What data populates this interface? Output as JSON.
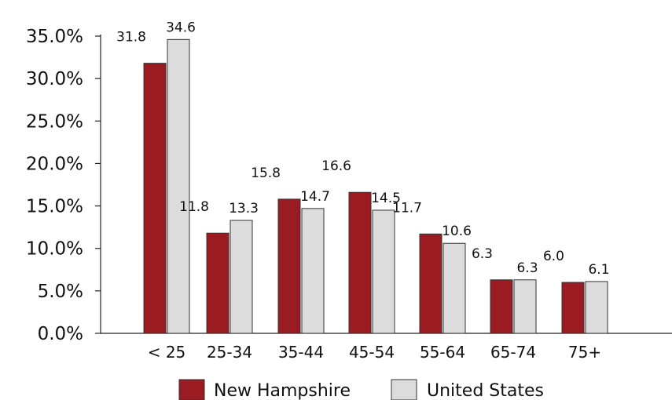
{
  "chart_data": {
    "type": "bar",
    "categories": [
      "< 25",
      "25-34",
      "35-44",
      "45-54",
      "55-64",
      "65-74",
      "75+"
    ],
    "series": [
      {
        "name": "New Hampshire",
        "color": "#9b1b22",
        "values": [
          31.8,
          11.8,
          15.8,
          16.6,
          11.7,
          6.3,
          6.0
        ],
        "labels": [
          "31.8",
          "11.8",
          "15.8",
          "16.6",
          "11.7",
          "6.3",
          "6.0"
        ]
      },
      {
        "name": "United States",
        "color": "#dcdcdc",
        "values": [
          34.6,
          13.3,
          14.7,
          14.5,
          10.6,
          6.3,
          6.1
        ],
        "labels": [
          "34.6",
          "13.3",
          "14.7",
          "14.5",
          "10.6",
          "6.3",
          "6.1"
        ]
      }
    ],
    "yticks": [
      "0.0%",
      "5.0%",
      "10.0%",
      "15.0%",
      "20.0%",
      "25.0%",
      "30.0%",
      "35.0%"
    ],
    "ylim": [
      0,
      35
    ],
    "grid": false,
    "legend_position": "bottom",
    "title": "",
    "xlabel": "",
    "ylabel": ""
  }
}
